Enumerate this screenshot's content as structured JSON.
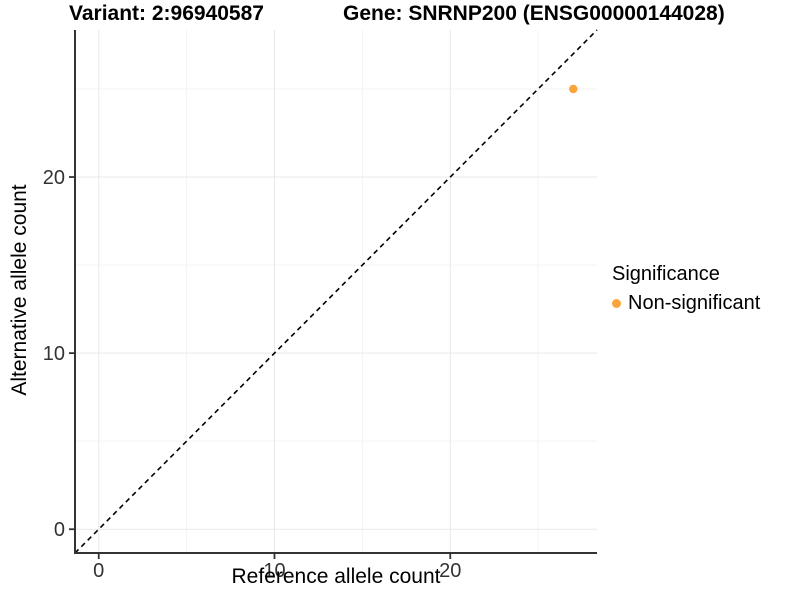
{
  "chart_data": {
    "type": "scatter",
    "title_left": "Variant: 2:96940587",
    "title_right": "Gene: SNRNP200 (ENSG00000144028)",
    "xlabel": "Reference allele count",
    "ylabel": "Alternative allele count",
    "xlim": [
      -1.35,
      28.35
    ],
    "ylim": [
      -1.35,
      28.35
    ],
    "xticks": [
      0,
      10,
      20
    ],
    "yticks": [
      0,
      10,
      20
    ],
    "xticks_minor": [
      5,
      15,
      25
    ],
    "yticks_minor": [
      5,
      15,
      25
    ],
    "grid": "major and minor, light gray",
    "points": [
      {
        "x": 27,
        "y": 25,
        "series": "Non-significant"
      }
    ],
    "reference_line": {
      "slope": 1,
      "intercept": 0,
      "style": "dashed",
      "color": "#000000"
    },
    "legend": {
      "title": "Significance",
      "position": "right",
      "items": [
        {
          "label": "Non-significant",
          "color": "#FAA43A"
        }
      ]
    },
    "colors": {
      "point": "#FAA43A",
      "grid_major": "#E9E9E9",
      "grid_minor": "#F3F3F3",
      "axis_line": "#333333",
      "tick_text": "#333333",
      "dashed_line": "#000000"
    }
  }
}
